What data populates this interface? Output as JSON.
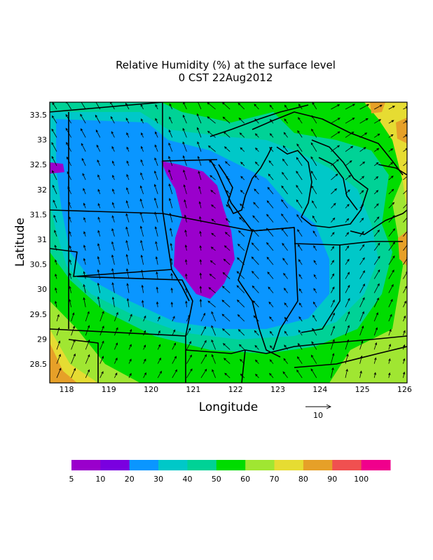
{
  "title": {
    "line1": "Relative Humidity (%) at the surface level",
    "line2": "0 CST 22Aug2012"
  },
  "axes": {
    "xlabel": "Longitude",
    "ylabel": "Latitude",
    "x_ticks": [
      "118",
      "119",
      "120",
      "121",
      "122",
      "123",
      "124",
      "125",
      "126"
    ],
    "y_ticks": [
      "33.5",
      "33",
      "32.5",
      "32",
      "31.5",
      "31",
      "30.5",
      "30",
      "29.5",
      "29",
      "28.5"
    ]
  },
  "vector_legend": {
    "label": "10"
  },
  "colorbar": {
    "colors": [
      "#9a00cc",
      "#7a00e0",
      "#0a96ff",
      "#00c8c8",
      "#00d296",
      "#00dc00",
      "#a0e632",
      "#e6dc32",
      "#e6a028",
      "#f05050",
      "#f0008c"
    ],
    "labels": [
      "5",
      "10",
      "20",
      "30",
      "40",
      "50",
      "60",
      "70",
      "80",
      "90",
      "100"
    ]
  },
  "palette": {
    "purple": "#9a00cc",
    "blue": "#0a96ff",
    "cyan": "#00c8c8",
    "teal": "#00d296",
    "green": "#00dc00",
    "lightgreen": "#a0e632",
    "yellow": "#e6dc32",
    "orange": "#e6a028"
  }
}
